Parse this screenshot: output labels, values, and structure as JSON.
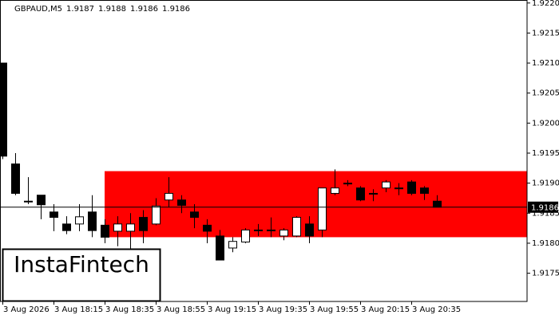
{
  "chart_data": {
    "type": "candlestick",
    "symbol": "GBPAUD,M5",
    "categories": [
      "3 Aug 2026",
      null,
      null,
      null,
      "3 Aug 18:15",
      null,
      null,
      null,
      "3 Aug 18:35",
      null,
      null,
      null,
      "3 Aug 18:55",
      null,
      null,
      null,
      "3 Aug 19:15",
      null,
      null,
      null,
      "3 Aug 19:35",
      null,
      null,
      null,
      "3 Aug 19:55",
      null,
      null,
      null,
      "3 Aug 20:15",
      null,
      null,
      null,
      "3 Aug 20:35",
      null,
      null
    ],
    "open": [
      1.921,
      1.91932,
      1.9187,
      1.9188,
      1.91852,
      1.91832,
      1.91832,
      1.91852,
      1.9183,
      1.9182,
      1.9182,
      1.91843,
      1.91832,
      1.91872,
      1.91872,
      1.91852,
      1.9183,
      1.91812,
      1.91792,
      1.91802,
      1.91822,
      1.91822,
      1.91812,
      1.91812,
      1.91832,
      1.91822,
      1.91883,
      1.919,
      1.91892,
      1.91883,
      1.91892,
      1.91892,
      1.91902,
      1.91892,
      1.9187
    ],
    "high": [
      1.921,
      1.9195,
      1.9191,
      1.9188,
      1.91865,
      1.91845,
      1.91865,
      1.9188,
      1.9184,
      1.91845,
      1.9185,
      1.91855,
      1.91875,
      1.9191,
      1.9188,
      1.91865,
      1.9184,
      1.91822,
      1.9181,
      1.91825,
      1.91832,
      1.91843,
      1.91825,
      1.91845,
      1.91845,
      1.91892,
      1.91923,
      1.91905,
      1.91895,
      1.9189,
      1.91905,
      1.919,
      1.91905,
      1.91895,
      1.9188
    ],
    "low": [
      1.9194,
      1.9188,
      1.91865,
      1.9184,
      1.9182,
      1.91815,
      1.9182,
      1.9181,
      1.918,
      1.91795,
      1.9178,
      1.918,
      1.9183,
      1.9186,
      1.9185,
      1.91825,
      1.918,
      1.91772,
      1.91785,
      1.918,
      1.91812,
      1.9181,
      1.91805,
      1.9181,
      1.918,
      1.9181,
      1.9188,
      1.91895,
      1.9187,
      1.9187,
      1.91885,
      1.9188,
      1.9188,
      1.91872,
      1.9186
    ],
    "close": [
      1.91945,
      1.91883,
      1.9187,
      1.91864,
      1.91843,
      1.91821,
      1.91844,
      1.91821,
      1.9181,
      1.91832,
      1.91832,
      1.91821,
      1.91862,
      1.91883,
      1.91863,
      1.91843,
      1.9182,
      1.91772,
      1.91803,
      1.91822,
      1.91822,
      1.91822,
      1.91822,
      1.91843,
      1.91812,
      1.91892,
      1.91892,
      1.919,
      1.91872,
      1.91883,
      1.91902,
      1.91892,
      1.91883,
      1.91883,
      1.9186
    ],
    "up_color": "#ffffff",
    "down_color": "#000000",
    "zone": {
      "top": 1.9192,
      "bottom": 1.9181,
      "color": "#ff0000"
    },
    "last_price": 1.9186,
    "ylim": [
      1.91703,
      1.92205
    ],
    "yticks": [
      {
        "value": 1.922,
        "label": "1.9220"
      },
      1.9215,
      {
        "value": 1.921,
        "label": "1.9210"
      },
      1.9205,
      {
        "value": 1.92,
        "label": "1.9200"
      },
      1.9195,
      {
        "value": 1.919,
        "label": "1.9190"
      },
      1.9185,
      {
        "value": 1.918,
        "label": "1.9180"
      },
      1.9175
    ],
    "watermark": "InstaFintech"
  }
}
